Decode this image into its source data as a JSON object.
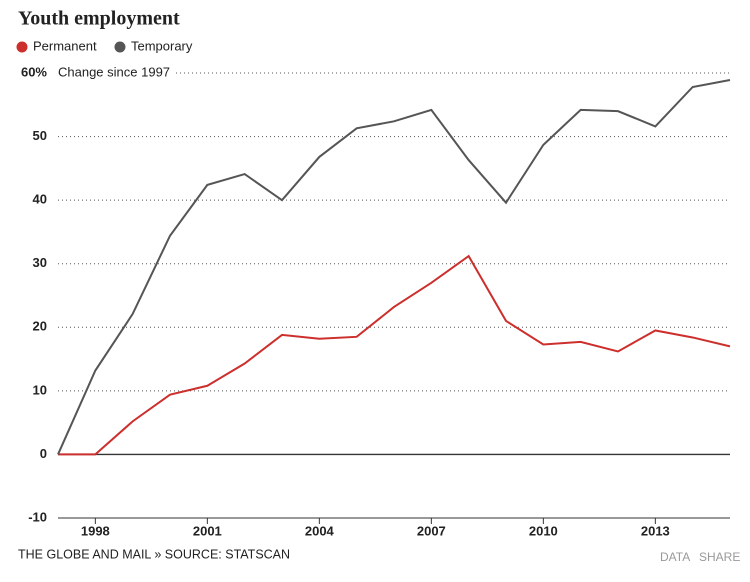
{
  "chart_data": {
    "type": "line",
    "title": "Youth employment",
    "y_label": "Change since 1997",
    "x": [
      1997,
      1998,
      1999,
      2000,
      2001,
      2002,
      2003,
      2004,
      2005,
      2006,
      2007,
      2008,
      2009,
      2010,
      2011,
      2012,
      2013,
      2014,
      2015
    ],
    "series": [
      {
        "name": "Permanent",
        "color": "#cc2f2c",
        "values": [
          0,
          0,
          5.2,
          9.4,
          10.8,
          14.3,
          18.8,
          18.2,
          18.5,
          23.2,
          27,
          31.2,
          21,
          17.3,
          17.7,
          16.2,
          19.5,
          18.4,
          17
        ]
      },
      {
        "name": "Temporary",
        "color": "#555555",
        "values": [
          0,
          13.2,
          22.1,
          34.4,
          42.4,
          44.1,
          40,
          46.8,
          51.3,
          52.4,
          54.2,
          46.3,
          39.6,
          48.7,
          54.2,
          54,
          51.6,
          57.8,
          58.9
        ]
      }
    ],
    "xlim": [
      1997,
      2015
    ],
    "xticks": [
      1998,
      2001,
      2004,
      2007,
      2010,
      2013
    ],
    "ylim": [
      -10,
      60
    ],
    "yticks": [
      -10,
      0,
      10,
      20,
      30,
      40,
      50,
      {
        "value": 60,
        "label": "60%"
      }
    ],
    "grid": true,
    "legend": "top-left"
  },
  "footer": {
    "source": "THE GLOBE AND MAIL » SOURCE: STATSCAN",
    "links": [
      "DATA",
      "SHARE"
    ]
  }
}
